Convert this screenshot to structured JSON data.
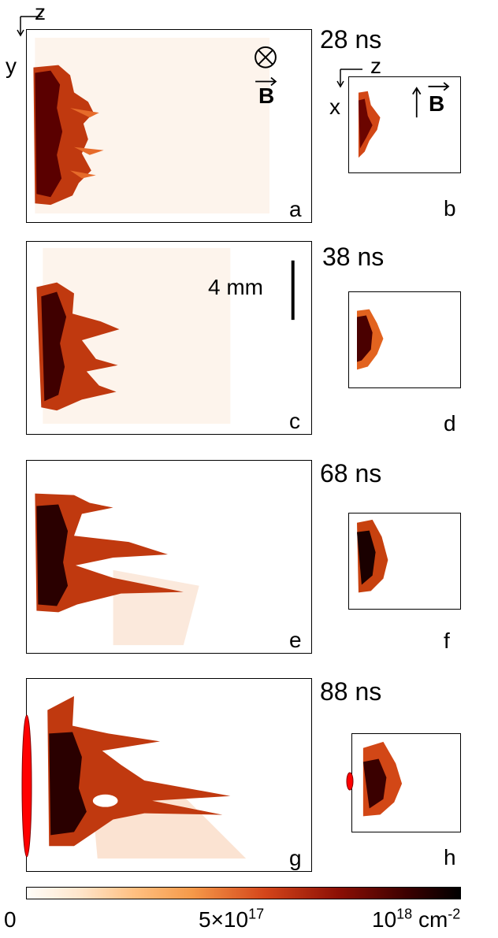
{
  "panels": {
    "a": "a",
    "b": "b",
    "c": "c",
    "d": "d",
    "e": "e",
    "f": "f",
    "g": "g",
    "h": "h"
  },
  "times": [
    "28 ns",
    "38 ns",
    "68 ns",
    "88 ns"
  ],
  "axes": {
    "main_horizontal": "z",
    "main_vertical": "y",
    "side_horizontal": "z",
    "side_vertical": "x",
    "field_symbol": "B"
  },
  "scale_bar": "4 mm",
  "colorbar": {
    "min_label": "0",
    "mid_label": "5×10",
    "mid_exp": "17",
    "max_label": "10",
    "max_exp": "18",
    "unit": "cm",
    "unit_exp": "-2",
    "colors": [
      "#fffdf9",
      "#ffbf80",
      "#d4451a",
      "#8c0f05",
      "#000000"
    ]
  },
  "marker_color": "#ff0000"
}
